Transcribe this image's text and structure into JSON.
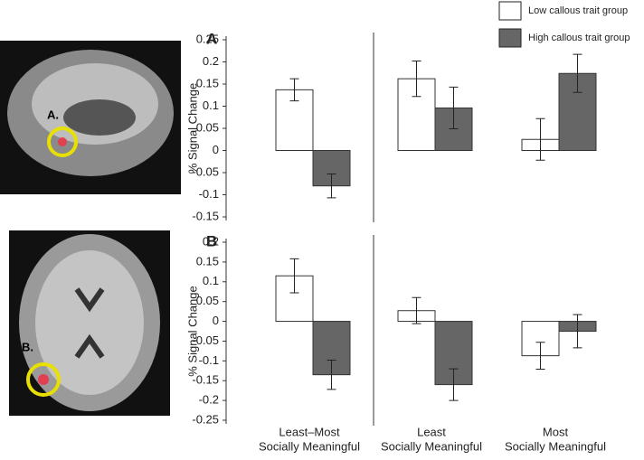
{
  "chart_data": [
    {
      "type": "bar",
      "title": "A",
      "y_label": "% Signal Change",
      "series": [
        {
          "name": "Low callous trait group",
          "color": "#ffffff",
          "values": [
            0.137,
            0.162,
            0.025
          ],
          "errors": [
            0.025,
            0.04,
            0.047
          ]
        },
        {
          "name": "High callous trait group",
          "color": "#666666",
          "values": [
            -0.08,
            0.096,
            0.174
          ],
          "errors": [
            0.027,
            0.047,
            0.043
          ]
        }
      ],
      "ylim": [
        -0.15,
        0.25
      ],
      "yticks": [
        -0.15,
        -0.1,
        -0.05,
        0,
        0.05,
        0.1,
        0.15,
        0.2,
        0.25
      ]
    },
    {
      "type": "bar",
      "title": "B",
      "y_label": "% Signal Change",
      "categories": [
        [
          "Least–Most",
          "Socially Meaningful"
        ],
        [
          "Least",
          "Socially Meaningful"
        ],
        [
          "Most",
          "Socially Meaningful"
        ]
      ],
      "series": [
        {
          "color": "#ffffff",
          "values": [
            0.115,
            0.027,
            -0.087
          ],
          "errors": [
            0.043,
            0.033,
            0.034
          ]
        },
        {
          "color": "#666666",
          "values": [
            -0.135,
            -0.16,
            -0.025
          ],
          "errors": [
            0.037,
            0.04,
            0.042
          ]
        }
      ],
      "ylim": [
        -0.25,
        0.2
      ],
      "yticks": [
        -0.25,
        -0.2,
        -0.15,
        -0.1,
        -0.05,
        0,
        0.05,
        0.1,
        0.15,
        0.2
      ]
    }
  ]
}
